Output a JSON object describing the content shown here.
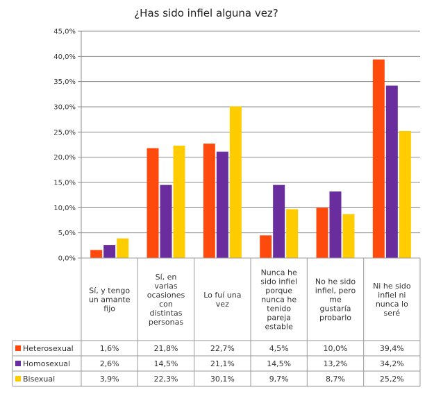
{
  "chart_data": {
    "type": "bar",
    "title": "¿Has sido infiel alguna vez?",
    "ylim": [
      0,
      45
    ],
    "ytick_step": 5,
    "ytick_labels": [
      "0,0%",
      "5,0%",
      "10,0%",
      "15,0%",
      "20,0%",
      "25,0%",
      "30,0%",
      "35,0%",
      "40,0%",
      "45,0%"
    ],
    "categories": [
      [
        "Sí, y tengo",
        "un amante",
        "fijo"
      ],
      [
        "Sí, en",
        "varias",
        "ocasiones",
        "con",
        "distintas",
        "personas"
      ],
      [
        "Lo fuí una",
        "vez"
      ],
      [
        "Nunca he",
        "sido infiel",
        "porque",
        "nunca he",
        "tenido",
        "pareja",
        "estable"
      ],
      [
        "No he sido",
        "infiel, pero",
        "me",
        "gustaría",
        "probarlo"
      ],
      [
        "Ni he sido",
        "infiel ni",
        "nunca lo",
        "seré"
      ]
    ],
    "series": [
      {
        "name": "Heterosexual",
        "color": "#FF4A0D",
        "values": [
          1.6,
          21.8,
          22.7,
          4.5,
          10.0,
          39.4
        ],
        "labels": [
          "1,6%",
          "21,8%",
          "22,7%",
          "4,5%",
          "10,0%",
          "39,4%"
        ]
      },
      {
        "name": "Homosexual",
        "color": "#6A2D9E",
        "values": [
          2.6,
          14.5,
          21.1,
          14.5,
          13.2,
          34.2
        ],
        "labels": [
          "2,6%",
          "14,5%",
          "21,1%",
          "14,5%",
          "13,2%",
          "34,2%"
        ]
      },
      {
        "name": "Bisexual",
        "color": "#FFCC00",
        "values": [
          3.9,
          22.3,
          30.1,
          9.7,
          8.7,
          25.2
        ],
        "labels": [
          "3,9%",
          "22,3%",
          "30,1%",
          "9,7%",
          "8,7%",
          "25,2%"
        ]
      }
    ]
  }
}
